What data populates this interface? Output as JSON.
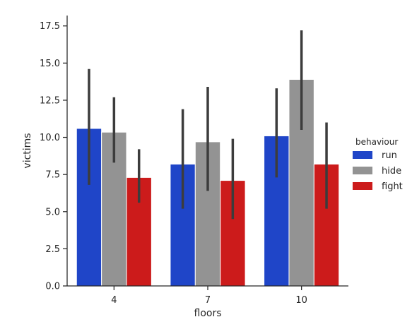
{
  "chart_data": {
    "type": "bar",
    "categories": [
      "4",
      "7",
      "10"
    ],
    "xlabel": "floors",
    "ylabel": "victims",
    "ylim": [
      0,
      18.2
    ],
    "yticks": [
      "0.0",
      "2.5",
      "5.0",
      "7.5",
      "10.0",
      "12.5",
      "15.0",
      "17.5"
    ],
    "legend": {
      "title": "behaviour",
      "placement": "right"
    },
    "series": [
      {
        "name": "run",
        "color": "#1f45c8",
        "values": [
          10.6,
          8.2,
          10.1
        ],
        "ci_low": [
          6.8,
          5.2,
          7.3
        ],
        "ci_high": [
          14.6,
          11.9,
          13.3
        ]
      },
      {
        "name": "hide",
        "color": "#939393",
        "values": [
          10.35,
          9.7,
          13.9
        ],
        "ci_low": [
          8.3,
          6.4,
          10.5
        ],
        "ci_high": [
          12.7,
          13.4,
          17.2
        ]
      },
      {
        "name": "fight",
        "color": "#cc1b1b",
        "values": [
          7.3,
          7.1,
          8.2
        ],
        "ci_low": [
          5.6,
          4.5,
          5.2
        ],
        "ci_high": [
          9.2,
          9.9,
          11.0
        ]
      }
    ],
    "grid": false
  }
}
